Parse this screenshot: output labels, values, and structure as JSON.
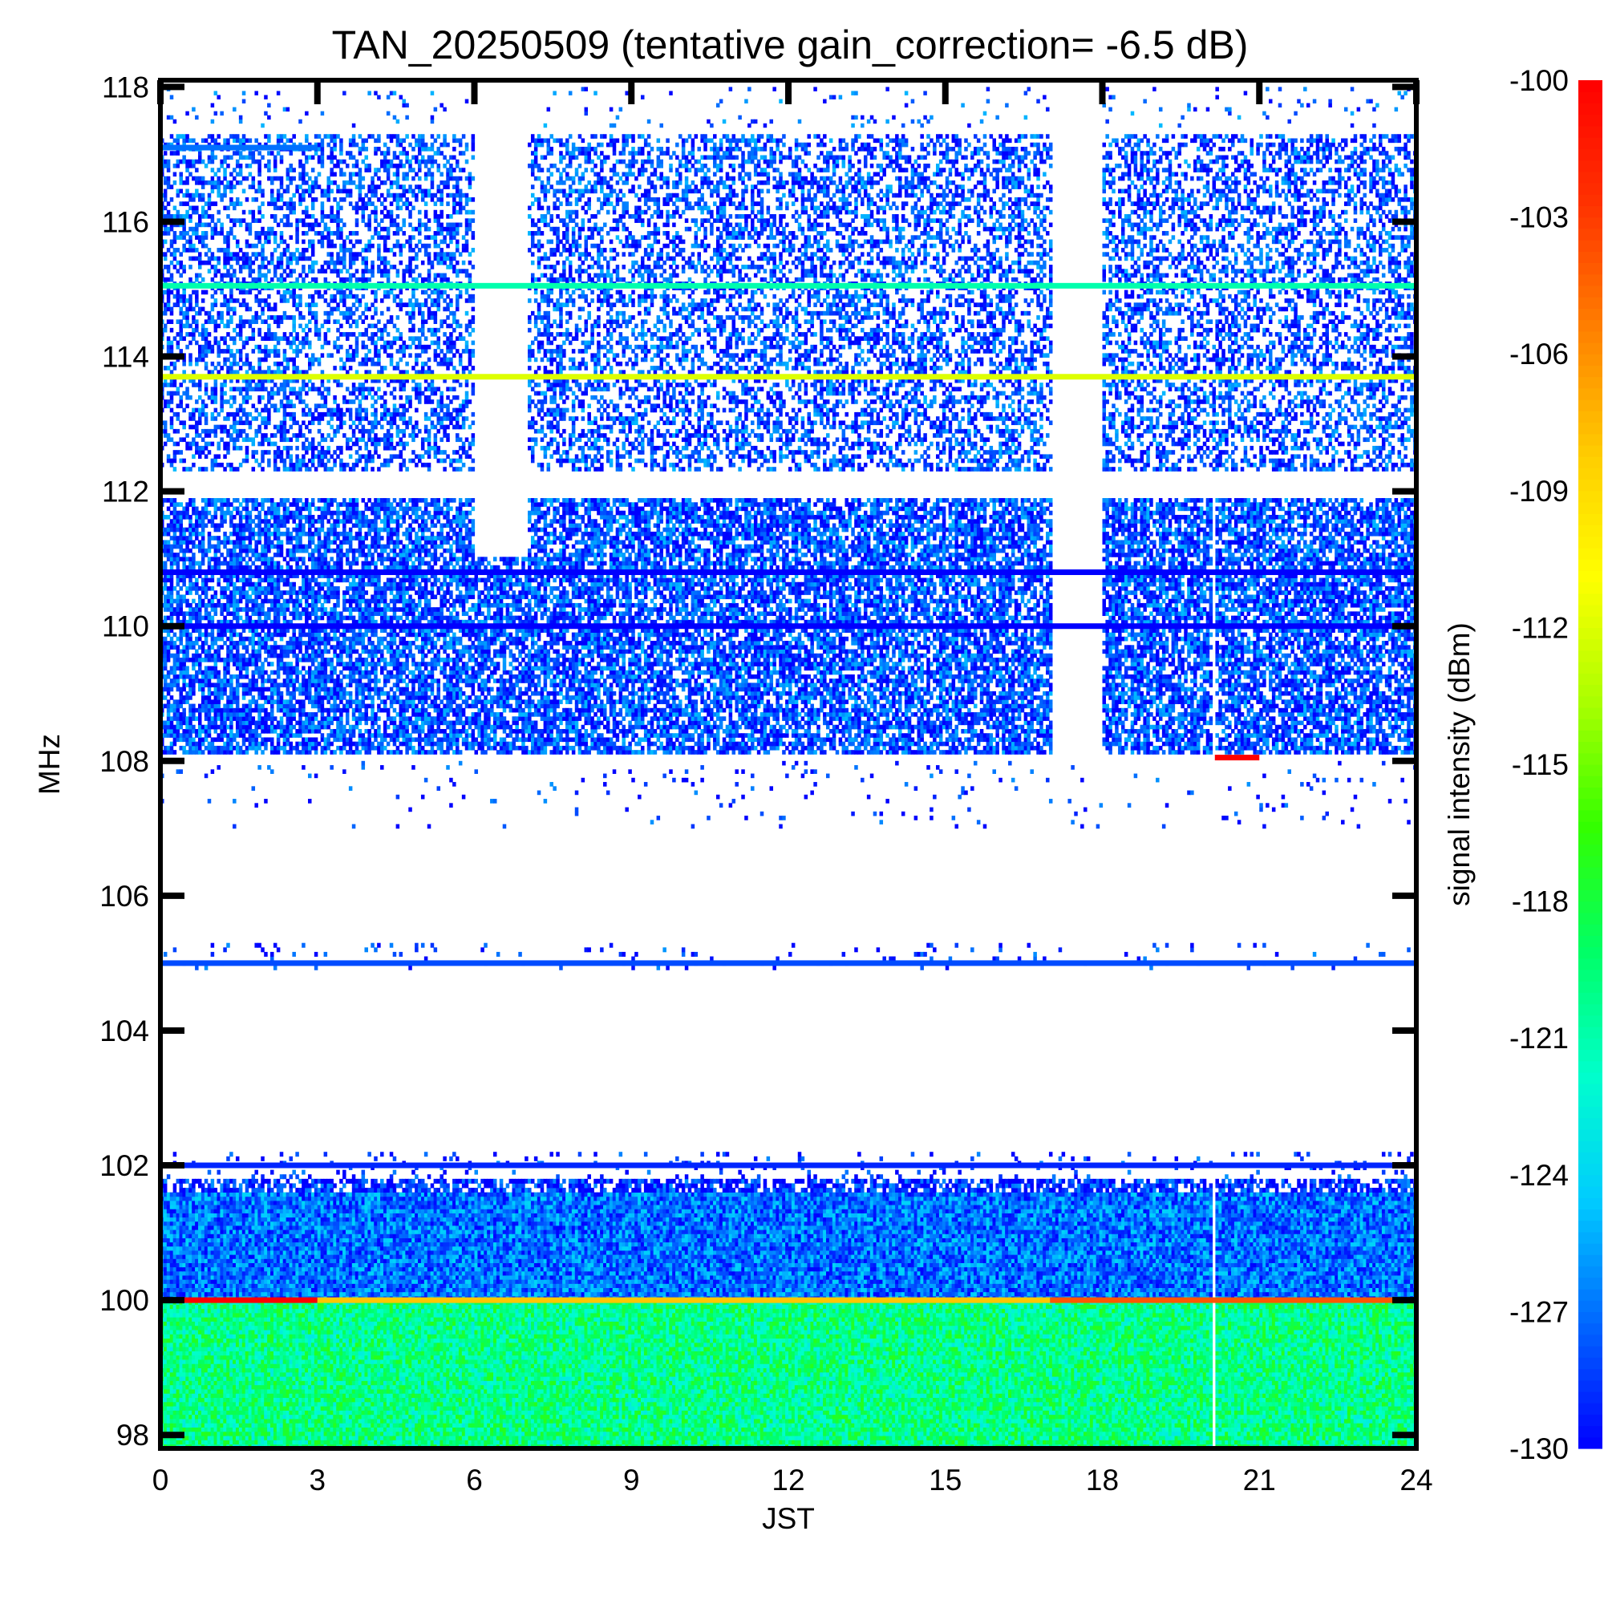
{
  "chart_data": {
    "type": "heatmap",
    "title": "TAN_20250509 (tentative gain_correction= -6.5 dB)",
    "xlabel": "JST",
    "ylabel": "MHz",
    "colorbar_label": "signal intensity (dBm)",
    "x_ticks": [
      "0",
      "3",
      "6",
      "9",
      "12",
      "15",
      "18",
      "21",
      "24"
    ],
    "y_ticks": [
      "98",
      "100",
      "102",
      "104",
      "106",
      "108",
      "110",
      "112",
      "114",
      "116",
      "118"
    ],
    "colorbar_ticks": [
      "-100",
      "-103",
      "-106",
      "-109",
      "-112",
      "-115",
      "-118",
      "-121",
      "-124",
      "-127",
      "-130"
    ],
    "xlim": [
      0,
      24
    ],
    "ylim": [
      97.8,
      118.1
    ],
    "clim": [
      -130,
      -100
    ],
    "colormap": [
      "#0000ff",
      "#0066ff",
      "#00ccff",
      "#00ffcc",
      "#00ff66",
      "#33ff00",
      "#aaff00",
      "#ffff00",
      "#ffcc00",
      "#ff8000",
      "#ff3300",
      "#ff0000"
    ],
    "data_gaps": [
      {
        "x": [
          6.0,
          7.0
        ],
        "y": [
          111.0,
          118.1
        ]
      },
      {
        "x": [
          17.0,
          18.0
        ],
        "y": [
          108.0,
          118.1
        ]
      },
      {
        "x": [
          20.05,
          20.15
        ],
        "y": [
          97.8,
          112.0
        ]
      }
    ],
    "bands": [
      {
        "name": "continuum",
        "y": [
          97.8,
          100.0
        ],
        "level": -120,
        "density": 1.0
      },
      {
        "name": "continuum-upper",
        "y": [
          100.0,
          101.6
        ],
        "level": -127,
        "density": 1.0
      },
      {
        "name": "fringe",
        "y": [
          101.6,
          101.8
        ],
        "level": -129,
        "density": 0.7
      },
      {
        "name": "sparse",
        "y": [
          101.8,
          102.2
        ],
        "level": -129,
        "density": 0.08
      },
      {
        "name": "sparse-mid",
        "y": [
          104.9,
          105.3
        ],
        "level": -129,
        "density": 0.05
      },
      {
        "name": "sparse-vhf",
        "y": [
          107.0,
          108.0
        ],
        "level": -129,
        "density": 0.03
      },
      {
        "name": "air-nav-lower",
        "y": [
          108.1,
          111.9
        ],
        "level": -128,
        "density": 0.72
      },
      {
        "name": "air-nav-upper",
        "y": [
          112.3,
          117.3
        ],
        "level": -128,
        "density": 0.45
      },
      {
        "name": "air-nav-top",
        "y": [
          117.4,
          118.0
        ],
        "level": -128,
        "density": 0.05
      }
    ],
    "lines": [
      {
        "freq": 100.0,
        "x": [
          0,
          3
        ],
        "level": -100
      },
      {
        "freq": 100.0,
        "x": [
          3,
          17
        ],
        "level": -108
      },
      {
        "freq": 100.0,
        "x": [
          17,
          24
        ],
        "level": -104
      },
      {
        "freq": 102.0,
        "x": [
          0,
          24
        ],
        "level": -129
      },
      {
        "freq": 105.0,
        "x": [
          0,
          24
        ],
        "level": -128
      },
      {
        "freq": 108.05,
        "x": [
          20.15,
          21.0
        ],
        "level": -100
      },
      {
        "freq": 110.0,
        "x": [
          0,
          24
        ],
        "level": -130
      },
      {
        "freq": 110.8,
        "x": [
          0,
          24
        ],
        "level": -130
      },
      {
        "freq": 113.7,
        "x": [
          0,
          24
        ],
        "level": -112
      },
      {
        "freq": 115.05,
        "x": [
          0,
          24
        ],
        "level": -121
      },
      {
        "freq": 117.1,
        "x": [
          0,
          3
        ],
        "level": -127
      }
    ]
  }
}
